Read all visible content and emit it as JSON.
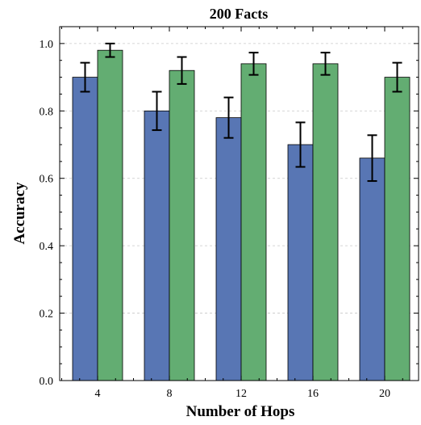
{
  "chart_data": {
    "type": "bar",
    "title": "200 Facts",
    "xlabel": "Number of Hops",
    "ylabel": "Accuracy",
    "categories": [
      "4",
      "8",
      "12",
      "16",
      "20"
    ],
    "series": [
      {
        "color": "#5876b4",
        "values": [
          0.9,
          0.8,
          0.78,
          0.7,
          0.66
        ],
        "errors": [
          0.043,
          0.057,
          0.06,
          0.066,
          0.068
        ]
      },
      {
        "color": "#63ad72",
        "values": [
          0.98,
          0.92,
          0.94,
          0.94,
          0.9
        ],
        "errors": [
          0.02,
          0.04,
          0.033,
          0.033,
          0.043
        ]
      }
    ],
    "ylim": [
      0,
      1.05
    ],
    "yticks": [
      "0.0",
      "0.2",
      "0.4",
      "0.6",
      "0.8",
      "1.0"
    ],
    "grid": true,
    "grid_axis": "y"
  }
}
